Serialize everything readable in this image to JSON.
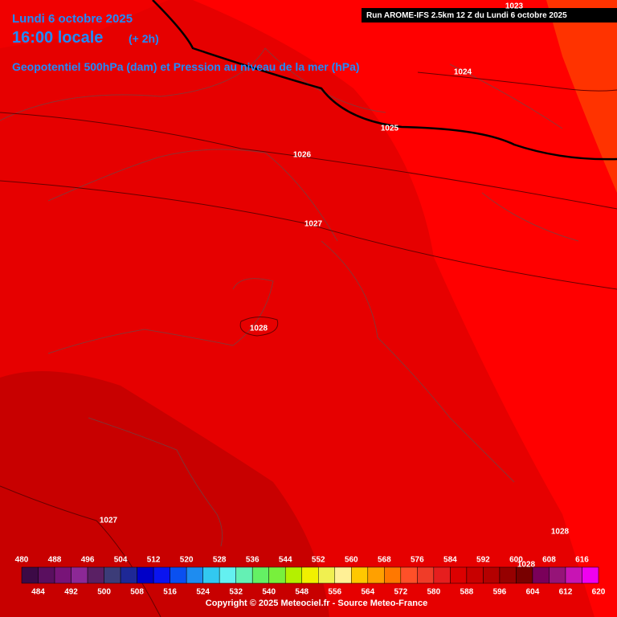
{
  "header": {
    "date": "Lundi 6 octobre 2025",
    "time": "16:00 locale",
    "offset": "(+ 2h)",
    "subtitle": "Geopotentiel 500hPa (dam) et Pression au niveau de la mer (hPa)",
    "run": "Run AROME-IFS 2.5km 12 Z du Lundi 6 octobre 2025"
  },
  "isobar_labels": [
    "1023",
    "1024",
    "1025",
    "1026",
    "1027",
    "1028",
    "1027",
    "1028",
    "1028"
  ],
  "colorbar": {
    "ticks": [
      480,
      484,
      488,
      492,
      496,
      500,
      504,
      508,
      512,
      516,
      520,
      524,
      528,
      532,
      536,
      540,
      544,
      548,
      552,
      556,
      560,
      564,
      568,
      572,
      576,
      580,
      584,
      588,
      592,
      596,
      600,
      604,
      608,
      612,
      616,
      620
    ],
    "colors": [
      "#3c0a46",
      "#5a0f5f",
      "#781478",
      "#8c2896",
      "#5a2064",
      "#3c3c78",
      "#1e2896",
      "#0000c8",
      "#0a14f0",
      "#0a50f0",
      "#1e8cf0",
      "#32c8f0",
      "#64f0f0",
      "#64f0b4",
      "#64f064",
      "#78f03c",
      "#b4f000",
      "#f0f000",
      "#f0f050",
      "#fff096",
      "#ffc800",
      "#ffa000",
      "#ff7800",
      "#ff5028",
      "#f03c28",
      "#e61e1e",
      "#dc0000",
      "#c80000",
      "#b40000",
      "#960000",
      "#780000",
      "#7a005a",
      "#961478",
      "#c814b4",
      "#f000f0"
    ]
  },
  "footer": {
    "copyright": "Copyright © 2025 Meteociel.fr - Source Meteo-France"
  }
}
